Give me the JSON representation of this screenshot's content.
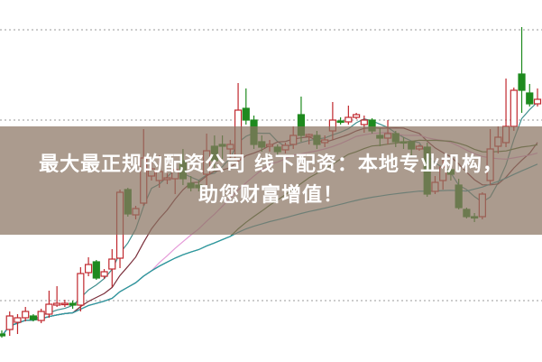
{
  "banner": {
    "line1": "最大最正规的配资公司 线下配资：本地专业机构，",
    "line2": "助您财富增值！"
  },
  "chart_data": {
    "type": "candlestick",
    "title": "",
    "xlabel": "",
    "ylabel": "",
    "grid": true,
    "gridlines": [
      16.75,
      66.75,
      91.75
    ],
    "ylim": [
      0,
      100
    ],
    "colors": {
      "up": "#c0272d",
      "down": "#1e8a1e",
      "grid": "#9a9a9a",
      "banner": "#8a7462"
    },
    "moving_averages": [
      {
        "period": 5,
        "color": "#3f8f8f"
      },
      {
        "period": 10,
        "color": "#7a2e3a"
      },
      {
        "period": 20,
        "color": "#e59ad8"
      },
      {
        "period": 30,
        "color": "#3d6b2a"
      },
      {
        "period": 60,
        "color": "#2a9aa8"
      }
    ],
    "candles": [
      [
        7.5,
        8.5,
        6.5,
        7
      ],
      [
        8.75,
        13.75,
        7,
        12.5
      ],
      [
        10.75,
        13,
        7.5,
        12
      ],
      [
        12,
        15,
        11,
        13.75
      ],
      [
        12.5,
        13,
        11,
        11.5
      ],
      [
        11.25,
        14.5,
        10.5,
        13.75
      ],
      [
        13,
        19.5,
        12,
        15.75
      ],
      [
        15.5,
        20.75,
        15,
        16
      ],
      [
        15.75,
        17,
        15,
        16
      ],
      [
        16,
        16.75,
        14.5,
        15.5
      ],
      [
        15.5,
        26,
        13.75,
        24.25
      ],
      [
        24.5,
        28.75,
        23.5,
        26.75
      ],
      [
        27.5,
        28,
        22.5,
        23
      ],
      [
        23.5,
        25.5,
        22.75,
        24.75
      ],
      [
        25.5,
        31,
        20.5,
        28.25
      ],
      [
        28.5,
        47.5,
        25.75,
        46.75
      ],
      [
        47.5,
        48,
        40,
        40.75
      ],
      [
        40.5,
        43,
        39.25,
        42.25
      ],
      [
        43.75,
        64.25,
        43,
        56.25
      ],
      [
        51.25,
        55,
        50,
        53.25
      ],
      [
        50,
        57,
        48,
        52.5
      ],
      [
        50.25,
        52,
        49,
        50.75
      ],
      [
        50.5,
        55,
        46.25,
        53
      ],
      [
        55.5,
        58.75,
        48.75,
        50.5
      ],
      [
        49.25,
        51.25,
        47,
        48
      ],
      [
        48.75,
        50,
        47,
        48
      ],
      [
        51.75,
        63,
        47.5,
        58.25
      ],
      [
        59.5,
        62.5,
        52.5,
        55.5
      ],
      [
        60,
        62.5,
        56,
        59.5
      ],
      [
        58.75,
        61.25,
        56.25,
        60
      ],
      [
        55.75,
        77,
        54.25,
        69.5
      ],
      [
        70,
        75.5,
        65.5,
        66.75
      ],
      [
        66.75,
        68,
        58.75,
        60
      ],
      [
        60.75,
        62.5,
        58,
        59.25
      ],
      [
        59.5,
        61.25,
        58,
        60
      ],
      [
        59.25,
        60,
        57,
        58
      ],
      [
        58.5,
        60.5,
        57.5,
        59.75
      ],
      [
        60,
        65,
        58.75,
        62.5
      ],
      [
        68.25,
        73.25,
        60.75,
        62.5
      ],
      [
        62.25,
        63,
        60,
        62.75
      ],
      [
        62.5,
        63.75,
        58.75,
        60
      ],
      [
        60.5,
        62.5,
        59.25,
        61.25
      ],
      [
        63.75,
        71.75,
        61.25,
        66.75
      ],
      [
        66.5,
        67.5,
        65.5,
        66.25
      ],
      [
        66.25,
        70.75,
        65.5,
        67.5
      ],
      [
        67.5,
        68.75,
        67,
        68.25
      ],
      [
        65.5,
        68,
        63.25,
        66.75
      ],
      [
        66.75,
        67.25,
        63,
        63.75
      ],
      [
        62.5,
        64.5,
        59.5,
        61.75
      ],
      [
        61.75,
        66.75,
        60,
        63
      ],
      [
        63,
        63.75,
        59.25,
        60.75
      ],
      [
        60.75,
        62,
        58.75,
        60.5
      ],
      [
        60.75,
        60.75,
        57,
        58.75
      ],
      [
        58.75,
        60,
        58.25,
        59.5
      ],
      [
        59.25,
        60.5,
        45.5,
        46.25
      ],
      [
        47,
        51.25,
        46.25,
        49.5
      ],
      [
        50,
        56.25,
        47.5,
        53.75
      ],
      [
        53,
        55,
        50,
        51.75
      ],
      [
        48.75,
        50.5,
        42,
        42.5
      ],
      [
        42,
        42.5,
        39.5,
        40
      ],
      [
        40,
        41,
        38.5,
        39.75
      ],
      [
        40,
        46.75,
        39.25,
        46.25
      ],
      [
        50,
        64.25,
        48.75,
        58.75
      ],
      [
        59.5,
        65,
        57.5,
        62
      ],
      [
        60.5,
        78.25,
        59.25,
        65
      ],
      [
        65,
        75.75,
        63.75,
        75
      ],
      [
        79.5,
        92.5,
        68.75,
        75
      ],
      [
        74.25,
        76.75,
        70.5,
        71.25
      ],
      [
        71.25,
        75.5,
        70.5,
        72.5
      ]
    ]
  }
}
